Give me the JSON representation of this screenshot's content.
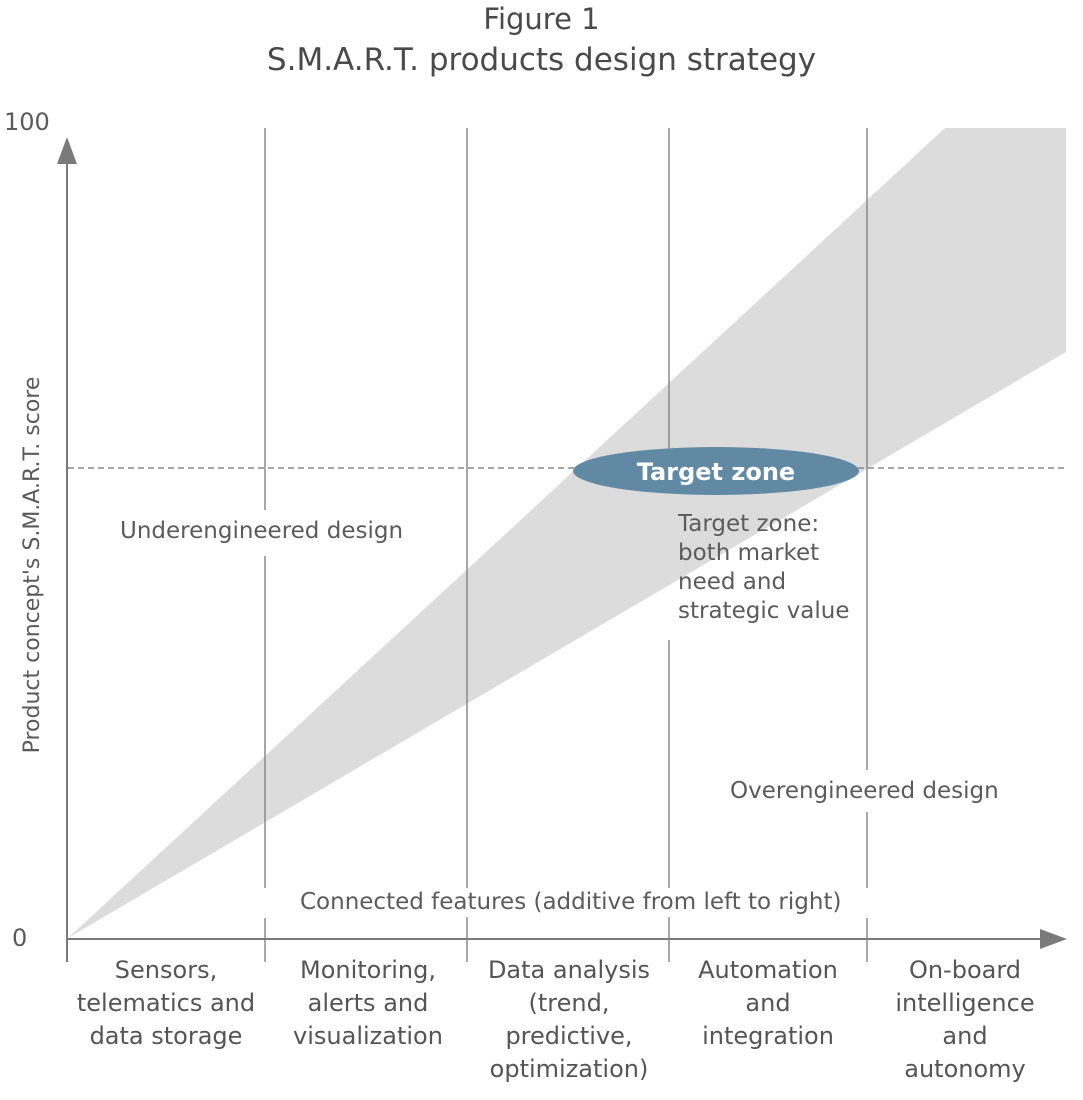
{
  "figure": {
    "label": "Figure 1",
    "title": "S.M.A.R.T. products design strategy"
  },
  "axes": {
    "y_label": "Product concept's S.M.A.R.T. score",
    "y_max_label": "100",
    "y_min_label": "0",
    "x_label": "Connected features (additive from left to right)"
  },
  "categories": [
    {
      "lines": [
        "Sensors,",
        "telematics and",
        "data storage"
      ]
    },
    {
      "lines": [
        "Monitoring,",
        "alerts and",
        "visualization"
      ]
    },
    {
      "lines": [
        "Data analysis",
        "(trend,",
        "predictive,",
        "optimization)"
      ]
    },
    {
      "lines": [
        "Automation",
        "and",
        "integration"
      ]
    },
    {
      "lines": [
        "On-board",
        "intelligence",
        "and",
        "autonomy"
      ]
    }
  ],
  "regions": {
    "under": "Underengineered design",
    "over": "Overengineered design",
    "target_badge": "Target zone",
    "target_desc": [
      "Target zone:",
      "both market",
      "need and",
      "strategic value"
    ]
  },
  "colors": {
    "band": "#dcdcdc",
    "axis": "#7a7a7a",
    "badge": "#6289a4",
    "badge_text": "#ffffff",
    "text": "#555555"
  }
}
